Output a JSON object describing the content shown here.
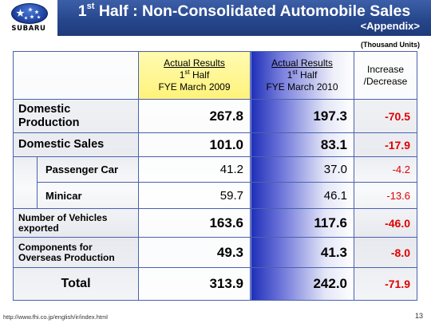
{
  "header": {
    "logo_text": "SUBARU",
    "title_prefix": "1",
    "title_sup": "st",
    "title_rest": " Half : Non-Consolidated Automobile Sales",
    "subtitle": "<Appendix>"
  },
  "units": "(Thousand Units)",
  "table": {
    "col_2009": {
      "line1": "Actual Results",
      "line2_prefix": "1",
      "line2_sup": "st",
      "line2_rest": " Half",
      "line3": "FYE March 2009"
    },
    "col_2010": {
      "line1": "Actual Results",
      "line2_prefix": "1",
      "line2_sup": "st",
      "line2_rest": " Half",
      "line3": "FYE March 2010"
    },
    "col_change": {
      "line1": "Increase",
      "line2": "/Decrease"
    },
    "rows": [
      {
        "label_l1": "Domestic",
        "label_l2": "Production",
        "v2009": "267.8",
        "v2010": "197.3",
        "change": "-70.5"
      },
      {
        "label": "Domestic Sales",
        "v2009": "101.0",
        "v2010": "83.1",
        "change": "-17.9"
      },
      {
        "label": "Passenger Car",
        "v2009": "41.2",
        "v2010": "37.0",
        "change": "-4.2"
      },
      {
        "label": "Minicar",
        "v2009": "59.7",
        "v2010": "46.1",
        "change": "-13.6"
      },
      {
        "label_l1": "Number of Vehicles",
        "label_l2": "exported",
        "v2009": "163.6",
        "v2010": "117.6",
        "change": "-46.0"
      },
      {
        "label_l1": "Components for",
        "label_l2": "Overseas Production",
        "v2009": "49.3",
        "v2010": "41.3",
        "change": "-8.0"
      },
      {
        "label": "Total",
        "v2009": "313.9",
        "v2010": "242.0",
        "change": "-71.9"
      }
    ]
  },
  "footer": {
    "url": "http://www.fhi.co.jp/english/ir/index.html",
    "page_number": "13"
  },
  "colors": {
    "header_blue": "#27478d",
    "grid_blue": "#4a62ad",
    "highlight_yellow": "#fff27a",
    "negative_red": "#e00000"
  },
  "icons": [
    "subaru-pleiades-logo"
  ]
}
